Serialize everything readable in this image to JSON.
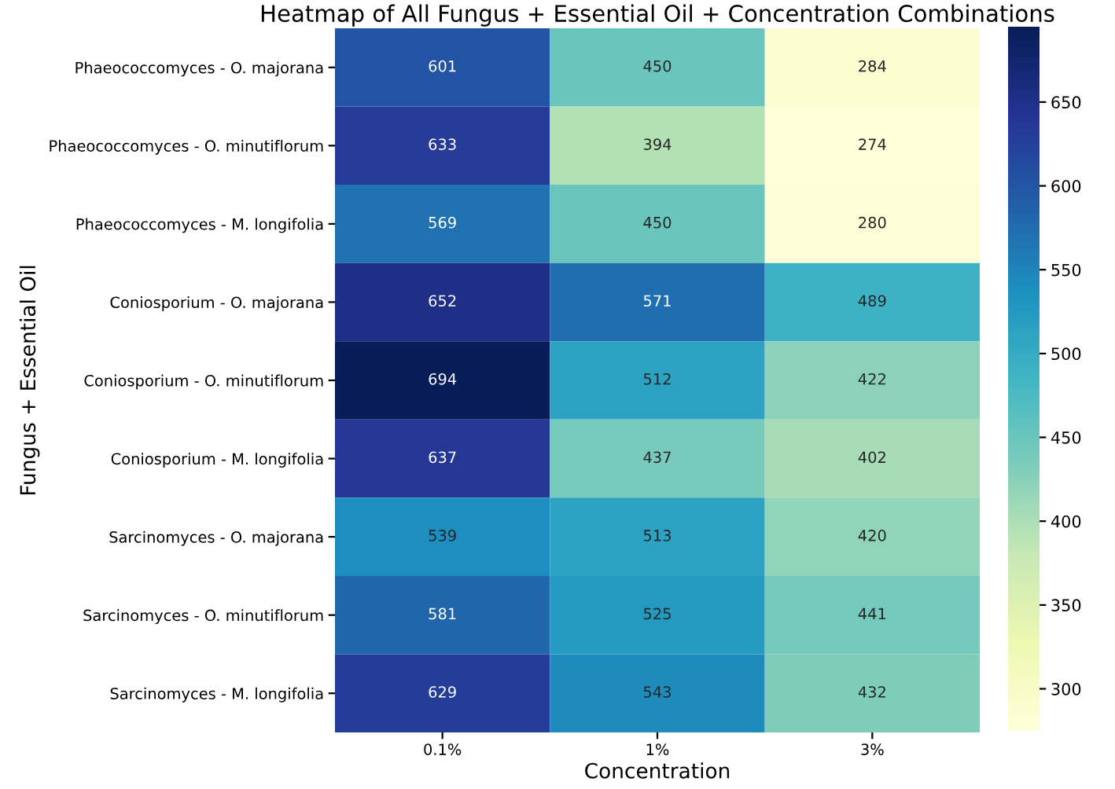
{
  "chart_data": {
    "type": "heatmap",
    "title": "Heatmap of All Fungus + Essential Oil + Concentration Combinations",
    "xlabel": "Concentration",
    "ylabel": "Fungus + Essential Oil",
    "categories": [
      "0.1%",
      "1%",
      "3%"
    ],
    "y_categories": [
      "Phaeococcomyces - O. majorana",
      "Phaeococcomyces - O. minutiflorum",
      "Phaeococcomyces - M. longifolia",
      "Coniosporium - O. majorana",
      "Coniosporium - O. minutiflorum",
      "Coniosporium - M. longifolia",
      "Sarcinomyces - O. majorana",
      "Sarcinomyces - O. minutiflorum",
      "Sarcinomyces - M. longifolia"
    ],
    "cells": [
      [
        601,
        450,
        284
      ],
      [
        633,
        394,
        274
      ],
      [
        569,
        450,
        280
      ],
      [
        652,
        571,
        489
      ],
      [
        694,
        512,
        422
      ],
      [
        637,
        437,
        402
      ],
      [
        539,
        513,
        420
      ],
      [
        581,
        525,
        441
      ],
      [
        629,
        543,
        432
      ]
    ],
    "data_labels": true,
    "clim": [
      274,
      694
    ],
    "cticks": [
      300,
      350,
      400,
      450,
      500,
      550,
      600,
      650
    ]
  }
}
